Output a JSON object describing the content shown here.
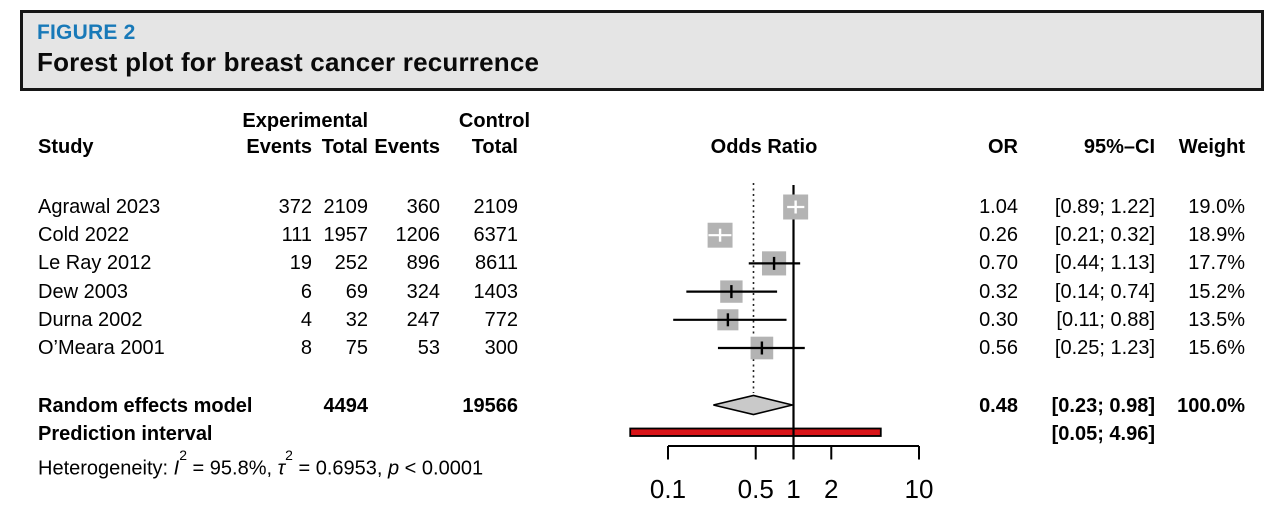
{
  "figure_header": {
    "label": "FIGURE 2",
    "title": "Forest plot for breast cancer recurrence"
  },
  "columns": {
    "study": "Study",
    "group_experimental": "Experimental",
    "group_control": "Control",
    "events": "Events",
    "total": "Total",
    "odds_ratio_plot": "Odds Ratio",
    "or": "OR",
    "ci": "95%–CI",
    "weight": "Weight"
  },
  "chart_data": {
    "type": "forest",
    "x_scale": "log10",
    "axis_ticks": [
      0.1,
      0.5,
      1,
      2,
      10
    ],
    "axis_tick_labels": [
      "0.1",
      "0.5",
      "1",
      "2",
      "10"
    ],
    "reference_line": 1,
    "pooled_estimate_line": 0.48,
    "studies": [
      {
        "study": "Agrawal 2023",
        "exp_events": "372",
        "exp_total": "2109",
        "ctrl_events": "360",
        "ctrl_total": "2109",
        "or": 1.04,
        "ci_lo": 0.89,
        "ci_hi": 1.22,
        "or_label": "1.04",
        "ci_label": "[0.89; 1.22]",
        "weight": 19.0,
        "weight_label": "19.0%"
      },
      {
        "study": "Cold 2022",
        "exp_events": "111",
        "exp_total": "1957",
        "ctrl_events": "1206",
        "ctrl_total": "6371",
        "or": 0.26,
        "ci_lo": 0.21,
        "ci_hi": 0.32,
        "or_label": "0.26",
        "ci_label": "[0.21; 0.32]",
        "weight": 18.9,
        "weight_label": "18.9%"
      },
      {
        "study": "Le Ray 2012",
        "exp_events": "19",
        "exp_total": "252",
        "ctrl_events": "896",
        "ctrl_total": "8611",
        "or": 0.7,
        "ci_lo": 0.44,
        "ci_hi": 1.13,
        "or_label": "0.70",
        "ci_label": "[0.44; 1.13]",
        "weight": 17.7,
        "weight_label": "17.7%"
      },
      {
        "study": "Dew 2003",
        "exp_events": "6",
        "exp_total": "69",
        "ctrl_events": "324",
        "ctrl_total": "1403",
        "or": 0.32,
        "ci_lo": 0.14,
        "ci_hi": 0.74,
        "or_label": "0.32",
        "ci_label": "[0.14; 0.74]",
        "weight": 15.2,
        "weight_label": "15.2%"
      },
      {
        "study": "Durna 2002",
        "exp_events": "4",
        "exp_total": "32",
        "ctrl_events": "247",
        "ctrl_total": "772",
        "or": 0.3,
        "ci_lo": 0.11,
        "ci_hi": 0.88,
        "or_label": "0.30",
        "ci_label": "[0.11; 0.88]",
        "weight": 13.5,
        "weight_label": "13.5%"
      },
      {
        "study": "O’Meara 2001",
        "exp_events": "8",
        "exp_total": "75",
        "ctrl_events": "53",
        "ctrl_total": "300",
        "or": 0.56,
        "ci_lo": 0.25,
        "ci_hi": 1.23,
        "or_label": "0.56",
        "ci_label": "[0.25; 1.23]",
        "weight": 15.6,
        "weight_label": "15.6%"
      }
    ],
    "summary": {
      "label": "Random effects model",
      "exp_total": "4494",
      "ctrl_total": "19566",
      "or": 0.48,
      "ci_lo": 0.23,
      "ci_hi": 0.98,
      "or_label": "0.48",
      "ci_label": "[0.23; 0.98]",
      "weight_label": "100.0%"
    },
    "prediction_interval": {
      "label": "Prediction interval",
      "lo": 0.05,
      "hi": 4.96,
      "ci_label": "[0.05; 4.96]"
    },
    "heterogeneity": {
      "prefix": "Heterogeneity: ",
      "i_symbol": "I",
      "i_sup": "2",
      "i_value": " = 95.8%, ",
      "tau_symbol": "τ",
      "tau_sup": "2",
      "tau_value": " = 0.6953, ",
      "p_symbol": "p",
      "p_value": " < 0.0001"
    }
  },
  "colors": {
    "figure_label_blue": "#1879b8",
    "header_box_bg": "#e5e5e5",
    "square_gray": "#b3b3b3",
    "diamond_gray": "#c9c9c9",
    "prediction_red": "#d91418",
    "line_black": "#000000"
  }
}
